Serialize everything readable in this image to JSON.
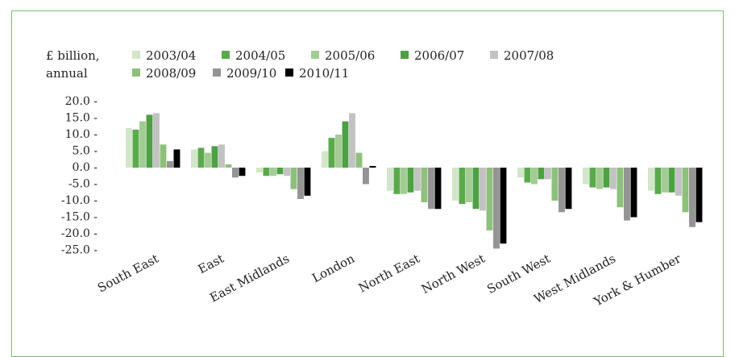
{
  "chart_data": {
    "type": "bar",
    "ylabel_lines": [
      "£ billion,",
      "annual"
    ],
    "categories": [
      "South East",
      "East",
      "East Midlands",
      "London",
      "North East",
      "North West",
      "South West",
      "West Midlands",
      "York & Humber"
    ],
    "series": [
      {
        "name": "2003/04",
        "color": "#d2e6c9",
        "values": [
          12.0,
          5.5,
          -1.5,
          5.0,
          -7.0,
          -10.0,
          -3.0,
          -5.0,
          -7.0
        ]
      },
      {
        "name": "2004/05",
        "color": "#5aaa4c",
        "values": [
          11.5,
          6.0,
          -2.5,
          9.0,
          -8.0,
          -11.0,
          -4.5,
          -6.0,
          -8.0
        ]
      },
      {
        "name": "2005/06",
        "color": "#a2cc92",
        "values": [
          14.0,
          4.5,
          -2.5,
          10.0,
          -8.0,
          -10.5,
          -5.0,
          -6.5,
          -7.5
        ]
      },
      {
        "name": "2006/07",
        "color": "#4ea044",
        "values": [
          16.0,
          6.5,
          -2.0,
          14.0,
          -7.5,
          -12.5,
          -3.5,
          -6.0,
          -7.5
        ]
      },
      {
        "name": "2007/08",
        "color": "#c2c2c2",
        "values": [
          16.5,
          7.0,
          -2.5,
          16.5,
          -7.0,
          -13.0,
          -3.5,
          -6.5,
          -8.5
        ]
      },
      {
        "name": "2008/09",
        "color": "#8ec07c",
        "values": [
          7.0,
          1.0,
          -6.5,
          4.5,
          -10.5,
          -19.0,
          -10.0,
          -12.0,
          -13.5
        ]
      },
      {
        "name": "2009/10",
        "color": "#949494",
        "values": [
          2.0,
          -3.0,
          -9.5,
          -5.0,
          -12.5,
          -24.5,
          -13.5,
          -16.0,
          -18.0
        ]
      },
      {
        "name": "2010/11",
        "color": "#000000",
        "values": [
          5.5,
          -2.5,
          -8.5,
          0.5,
          -12.5,
          -23.0,
          -12.5,
          -15.0,
          -16.5
        ]
      }
    ],
    "y_ticks": [
      "20.0 -",
      "15.0 -",
      "10.0 -",
      "5.0 -",
      "0.0 -",
      "-5.0 -",
      "-10.0 -",
      "-15.0 -",
      "-20.0 -",
      "-25.0 -"
    ],
    "y_tick_values": [
      20,
      15,
      10,
      5,
      0,
      -5,
      -10,
      -15,
      -20,
      -25
    ],
    "ylim": [
      -25,
      20
    ],
    "grid": false,
    "legend_position": "top"
  }
}
